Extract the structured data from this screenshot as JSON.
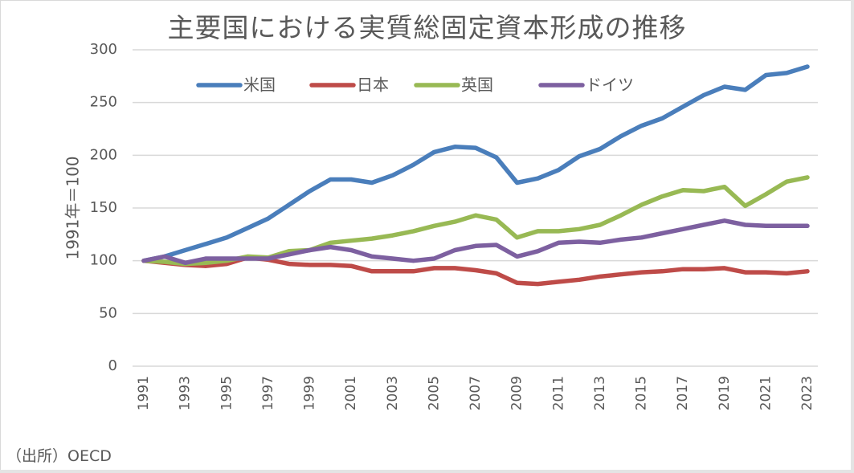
{
  "chart_data": {
    "type": "line",
    "title": "主要国における実質総固定資本形成の推移",
    "xlabel": "",
    "ylabel": "1991年＝100",
    "ylim": [
      0,
      300
    ],
    "yticks": [
      0,
      50,
      100,
      150,
      200,
      250,
      300
    ],
    "grid": true,
    "legend_position": "top",
    "x": [
      1991,
      1992,
      1993,
      1994,
      1995,
      1996,
      1997,
      1998,
      1999,
      2000,
      2001,
      2002,
      2003,
      2004,
      2005,
      2006,
      2007,
      2008,
      2009,
      2010,
      2011,
      2012,
      2013,
      2014,
      2015,
      2016,
      2017,
      2018,
      2019,
      2020,
      2021,
      2022,
      2023
    ],
    "xtick_labels": [
      "1991",
      "1993",
      "1995",
      "1997",
      "1999",
      "2001",
      "2003",
      "2005",
      "2007",
      "2009",
      "2011",
      "2013",
      "2015",
      "2017",
      "2019",
      "2021",
      "2023"
    ],
    "series": [
      {
        "name": "米国",
        "color": "#4a7ebb",
        "values": [
          100,
          104,
          110,
          116,
          122,
          131,
          140,
          153,
          166,
          177,
          177,
          174,
          181,
          191,
          203,
          208,
          207,
          198,
          174,
          178,
          186,
          199,
          206,
          218,
          228,
          235,
          246,
          257,
          265,
          262,
          276,
          278,
          284
        ]
      },
      {
        "name": "日本",
        "color": "#be4b48",
        "values": [
          100,
          98,
          96,
          95,
          97,
          103,
          101,
          97,
          96,
          96,
          95,
          90,
          90,
          90,
          93,
          93,
          91,
          88,
          79,
          78,
          80,
          82,
          85,
          87,
          89,
          90,
          92,
          92,
          93,
          89,
          89,
          88,
          90
        ]
      },
      {
        "name": "英国",
        "color": "#98b954",
        "values": [
          100,
          99,
          97,
          98,
          100,
          104,
          103,
          109,
          110,
          117,
          119,
          121,
          124,
          128,
          133,
          137,
          143,
          139,
          122,
          128,
          128,
          130,
          134,
          143,
          153,
          161,
          167,
          166,
          170,
          152,
          163,
          175,
          179
        ]
      },
      {
        "name": "ドイツ",
        "color": "#7d60a0",
        "values": [
          100,
          104,
          98,
          102,
          102,
          102,
          102,
          106,
          110,
          113,
          110,
          104,
          102,
          100,
          102,
          110,
          114,
          115,
          104,
          109,
          117,
          118,
          117,
          120,
          122,
          126,
          130,
          134,
          138,
          134,
          133,
          133,
          133
        ]
      }
    ],
    "source": "（出所）OECD"
  }
}
